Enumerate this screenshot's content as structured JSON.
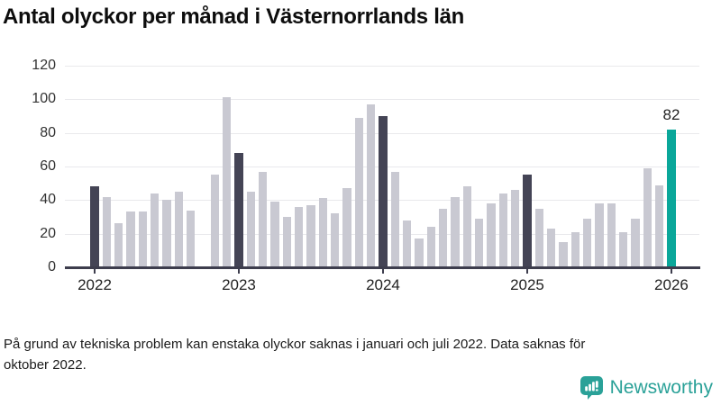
{
  "title": "Antal olyckor per månad i Västernorrlands län",
  "footnote": "På grund av tekniska problem kan enstaka olyckor saknas i januari och juli 2022. Data saknas för oktober 2022.",
  "brand": {
    "name": "Newsworthy",
    "icon": "bar-chart-speech-bubble-icon"
  },
  "colors": {
    "bar_default": "#c9c9d2",
    "bar_january": "#444455",
    "bar_latest": "#0aa79a",
    "gridline": "#e9e9ec",
    "axis": "#3d3d4d",
    "brand_teal": "#2aa198"
  },
  "chart_data": {
    "type": "bar",
    "title": "Antal olyckor per månad i Västernorrlands län",
    "xlabel": "",
    "ylabel": "",
    "ylim": [
      0,
      120
    ],
    "yticks": [
      0,
      20,
      40,
      60,
      80,
      100,
      120
    ],
    "year_ticks": [
      "2022",
      "2023",
      "2024",
      "2025",
      "2026"
    ],
    "grid": "horizontal",
    "legend": "none",
    "bar_value_label": "82",
    "months": [
      {
        "month": "2022-01",
        "value": 48,
        "role": "january"
      },
      {
        "month": "2022-02",
        "value": 42,
        "role": "normal"
      },
      {
        "month": "2022-03",
        "value": 26,
        "role": "normal"
      },
      {
        "month": "2022-04",
        "value": 33,
        "role": "normal"
      },
      {
        "month": "2022-05",
        "value": 33,
        "role": "normal"
      },
      {
        "month": "2022-06",
        "value": 44,
        "role": "normal"
      },
      {
        "month": "2022-07",
        "value": 40,
        "role": "normal"
      },
      {
        "month": "2022-08",
        "value": 45,
        "role": "normal"
      },
      {
        "month": "2022-09",
        "value": 34,
        "role": "normal"
      },
      {
        "month": "2022-10",
        "value": null,
        "role": "missing"
      },
      {
        "month": "2022-11",
        "value": 55,
        "role": "normal"
      },
      {
        "month": "2022-12",
        "value": 101,
        "role": "normal"
      },
      {
        "month": "2023-01",
        "value": 68,
        "role": "january"
      },
      {
        "month": "2023-02",
        "value": 45,
        "role": "normal"
      },
      {
        "month": "2023-03",
        "value": 57,
        "role": "normal"
      },
      {
        "month": "2023-04",
        "value": 39,
        "role": "normal"
      },
      {
        "month": "2023-05",
        "value": 30,
        "role": "normal"
      },
      {
        "month": "2023-06",
        "value": 36,
        "role": "normal"
      },
      {
        "month": "2023-07",
        "value": 37,
        "role": "normal"
      },
      {
        "month": "2023-08",
        "value": 41,
        "role": "normal"
      },
      {
        "month": "2023-09",
        "value": 32,
        "role": "normal"
      },
      {
        "month": "2023-10",
        "value": 47,
        "role": "normal"
      },
      {
        "month": "2023-11",
        "value": 89,
        "role": "normal"
      },
      {
        "month": "2023-12",
        "value": 97,
        "role": "normal"
      },
      {
        "month": "2024-01",
        "value": 90,
        "role": "january"
      },
      {
        "month": "2024-02",
        "value": 57,
        "role": "normal"
      },
      {
        "month": "2024-03",
        "value": 28,
        "role": "normal"
      },
      {
        "month": "2024-04",
        "value": 17,
        "role": "normal"
      },
      {
        "month": "2024-05",
        "value": 24,
        "role": "normal"
      },
      {
        "month": "2024-06",
        "value": 35,
        "role": "normal"
      },
      {
        "month": "2024-07",
        "value": 42,
        "role": "normal"
      },
      {
        "month": "2024-08",
        "value": 48,
        "role": "normal"
      },
      {
        "month": "2024-09",
        "value": 29,
        "role": "normal"
      },
      {
        "month": "2024-10",
        "value": 38,
        "role": "normal"
      },
      {
        "month": "2024-11",
        "value": 44,
        "role": "normal"
      },
      {
        "month": "2024-12",
        "value": 46,
        "role": "normal"
      },
      {
        "month": "2025-01",
        "value": 55,
        "role": "january"
      },
      {
        "month": "2025-02",
        "value": 35,
        "role": "normal"
      },
      {
        "month": "2025-03",
        "value": 23,
        "role": "normal"
      },
      {
        "month": "2025-04",
        "value": 15,
        "role": "normal"
      },
      {
        "month": "2025-05",
        "value": 21,
        "role": "normal"
      },
      {
        "month": "2025-06",
        "value": 29,
        "role": "normal"
      },
      {
        "month": "2025-07",
        "value": 38,
        "role": "normal"
      },
      {
        "month": "2025-08",
        "value": 38,
        "role": "normal"
      },
      {
        "month": "2025-09",
        "value": 21,
        "role": "normal"
      },
      {
        "month": "2025-10",
        "value": 29,
        "role": "normal"
      },
      {
        "month": "2025-11",
        "value": 59,
        "role": "normal"
      },
      {
        "month": "2025-12",
        "value": 49,
        "role": "normal"
      },
      {
        "month": "2026-01",
        "value": 82,
        "role": "latest"
      }
    ]
  }
}
